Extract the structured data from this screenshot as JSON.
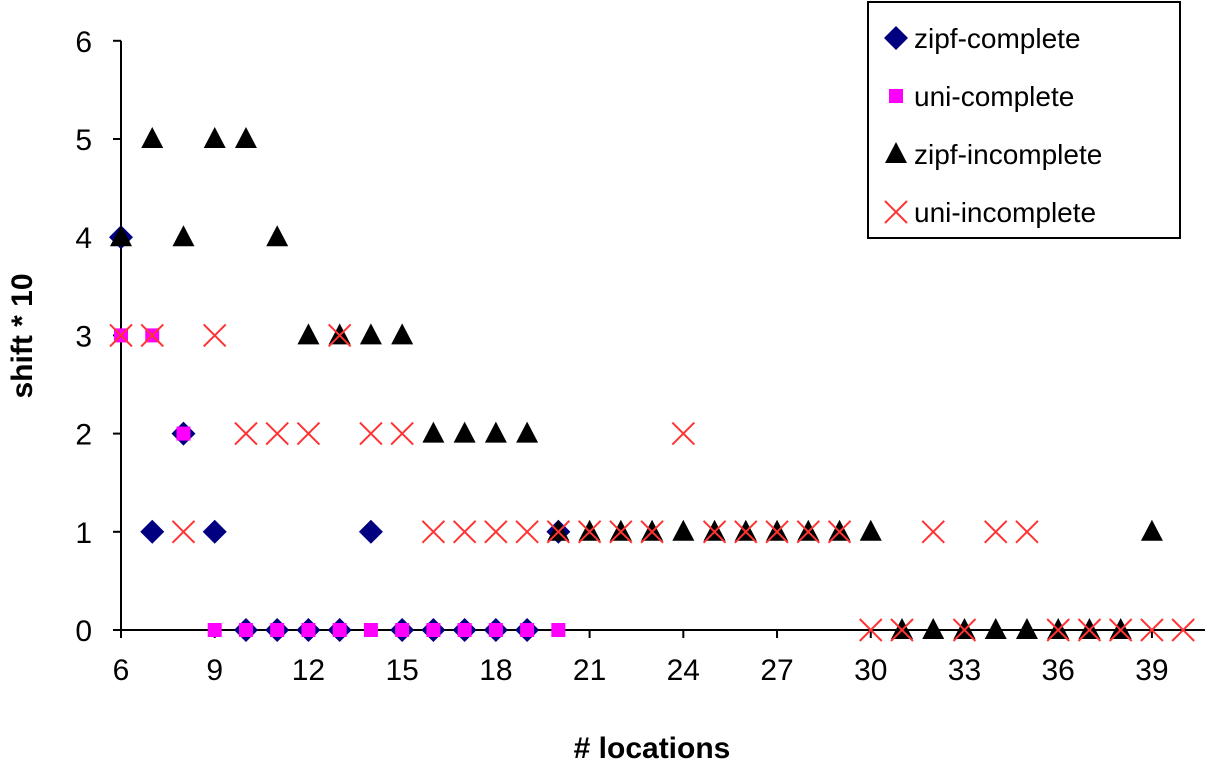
{
  "chart_data": {
    "type": "scatter",
    "xlabel": "# locations",
    "ylabel": "shift * 10",
    "xlim": [
      6,
      40
    ],
    "ylim": [
      0,
      6
    ],
    "x_ticks": [
      6,
      9,
      12,
      15,
      18,
      21,
      24,
      27,
      30,
      33,
      36,
      39
    ],
    "y_ticks": [
      0,
      1,
      2,
      3,
      4,
      5,
      6
    ],
    "grid": false,
    "legend_position": "top-right",
    "series": [
      {
        "name": "zipf-complete",
        "marker": "diamond",
        "color": "#000080",
        "points": [
          [
            6,
            4
          ],
          [
            7,
            1
          ],
          [
            8,
            2
          ],
          [
            9,
            1
          ],
          [
            10,
            0
          ],
          [
            11,
            0
          ],
          [
            12,
            0
          ],
          [
            13,
            0
          ],
          [
            14,
            1
          ],
          [
            15,
            0
          ],
          [
            16,
            0
          ],
          [
            17,
            0
          ],
          [
            18,
            0
          ],
          [
            19,
            0
          ],
          [
            20,
            1
          ]
        ]
      },
      {
        "name": "uni-complete",
        "marker": "square",
        "color": "#ff00ff",
        "points": [
          [
            6,
            3
          ],
          [
            7,
            3
          ],
          [
            8,
            2
          ],
          [
            9,
            0
          ],
          [
            10,
            0
          ],
          [
            11,
            0
          ],
          [
            12,
            0
          ],
          [
            13,
            0
          ],
          [
            14,
            0
          ],
          [
            15,
            0
          ],
          [
            16,
            0
          ],
          [
            17,
            0
          ],
          [
            18,
            0
          ],
          [
            19,
            0
          ],
          [
            20,
            0
          ]
        ]
      },
      {
        "name": "zipf-incomplete",
        "marker": "triangle",
        "color": "#000000",
        "points": [
          [
            6,
            4
          ],
          [
            7,
            5
          ],
          [
            8,
            4
          ],
          [
            9,
            5
          ],
          [
            10,
            5
          ],
          [
            11,
            4
          ],
          [
            12,
            3
          ],
          [
            13,
            3
          ],
          [
            14,
            3
          ],
          [
            15,
            3
          ],
          [
            16,
            2
          ],
          [
            17,
            2
          ],
          [
            18,
            2
          ],
          [
            19,
            2
          ],
          [
            20,
            1
          ],
          [
            21,
            1
          ],
          [
            22,
            1
          ],
          [
            23,
            1
          ],
          [
            24,
            1
          ],
          [
            25,
            1
          ],
          [
            26,
            1
          ],
          [
            27,
            1
          ],
          [
            28,
            1
          ],
          [
            29,
            1
          ],
          [
            30,
            1
          ],
          [
            31,
            0
          ],
          [
            32,
            0
          ],
          [
            33,
            0
          ],
          [
            34,
            0
          ],
          [
            35,
            0
          ],
          [
            36,
            0
          ],
          [
            37,
            0
          ],
          [
            38,
            0
          ],
          [
            39,
            1
          ]
        ]
      },
      {
        "name": "uni-incomplete",
        "marker": "x",
        "color": "#ff3333",
        "points": [
          [
            6,
            3
          ],
          [
            7,
            3
          ],
          [
            8,
            1
          ],
          [
            9,
            3
          ],
          [
            10,
            2
          ],
          [
            11,
            2
          ],
          [
            12,
            2
          ],
          [
            13,
            3
          ],
          [
            14,
            2
          ],
          [
            15,
            2
          ],
          [
            16,
            1
          ],
          [
            17,
            1
          ],
          [
            18,
            1
          ],
          [
            19,
            1
          ],
          [
            20,
            1
          ],
          [
            21,
            1
          ],
          [
            22,
            1
          ],
          [
            23,
            1
          ],
          [
            24,
            2
          ],
          [
            25,
            1
          ],
          [
            26,
            1
          ],
          [
            27,
            1
          ],
          [
            28,
            1
          ],
          [
            29,
            1
          ],
          [
            30,
            0
          ],
          [
            31,
            0
          ],
          [
            32,
            1
          ],
          [
            33,
            0
          ],
          [
            34,
            1
          ],
          [
            35,
            1
          ],
          [
            36,
            0
          ],
          [
            37,
            0
          ],
          [
            38,
            0
          ],
          [
            39,
            0
          ],
          [
            40,
            0
          ]
        ]
      }
    ]
  }
}
